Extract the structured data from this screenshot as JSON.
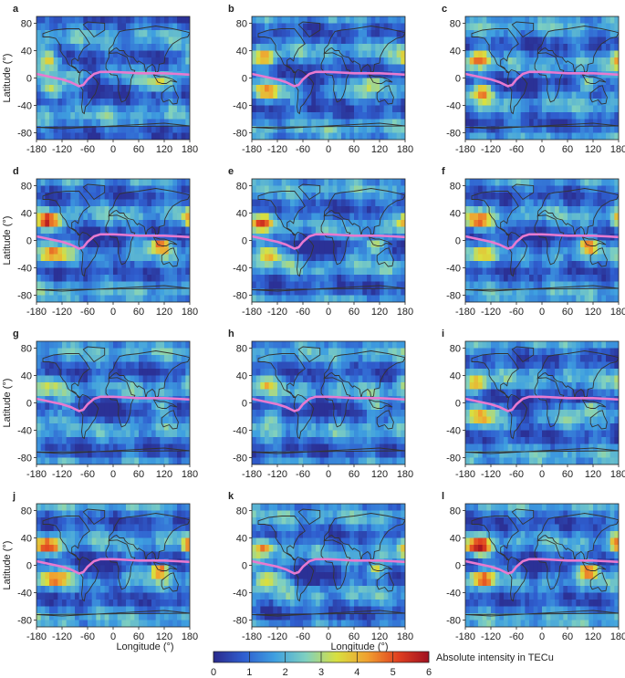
{
  "chart_data": {
    "type": "heatmap",
    "layout": "4x3 small multiples of global maps",
    "panels": [
      {
        "label": "a",
        "strength": 0.8,
        "seed": 3
      },
      {
        "label": "b",
        "strength": 0.9,
        "seed": 7
      },
      {
        "label": "c",
        "strength": 1.0,
        "seed": 11
      },
      {
        "label": "d",
        "strength": 1.2,
        "seed": 13
      },
      {
        "label": "e",
        "strength": 1.1,
        "seed": 17
      },
      {
        "label": "f",
        "strength": 1.0,
        "seed": 19
      },
      {
        "label": "g",
        "strength": 0.5,
        "seed": 23
      },
      {
        "label": "h",
        "strength": 0.6,
        "seed": 29
      },
      {
        "label": "i",
        "strength": 0.8,
        "seed": 31
      },
      {
        "label": "j",
        "strength": 1.2,
        "seed": 37
      },
      {
        "label": "k",
        "strength": 1.0,
        "seed": 41
      },
      {
        "label": "l",
        "strength": 1.3,
        "seed": 43
      }
    ],
    "xlabel": "Longitude (°)",
    "ylabel": "Latitude (°)",
    "xlim": [
      -180,
      180
    ],
    "ylim": [
      -90,
      90
    ],
    "xticks": [
      "-180",
      "-120",
      "-60",
      "0",
      "60",
      "120",
      "180"
    ],
    "yticks": [
      "80",
      "40",
      "0",
      "-40",
      "-80"
    ],
    "colorbar": {
      "label": "Absolute intensity in TECu",
      "range": [
        0,
        6
      ],
      "ticks": [
        "0",
        "1",
        "2",
        "3",
        "4",
        "5",
        "6"
      ],
      "colors": [
        "#2a2a8c",
        "#2f5fd0",
        "#3fa0e0",
        "#7fd0c0",
        "#d8e040",
        "#f0a030",
        "#e04020",
        "#a01020"
      ]
    },
    "overlay_line": {
      "color": "#e87ad0",
      "lon": [
        -180,
        -150,
        -120,
        -100,
        -80,
        -70,
        -60,
        -45,
        -30,
        0,
        30,
        60,
        90,
        120,
        150,
        180
      ],
      "lat": [
        6,
        2,
        -2,
        -6,
        -12,
        -10,
        -2,
        6,
        9,
        9,
        8,
        7,
        7,
        7,
        6,
        5
      ]
    }
  }
}
